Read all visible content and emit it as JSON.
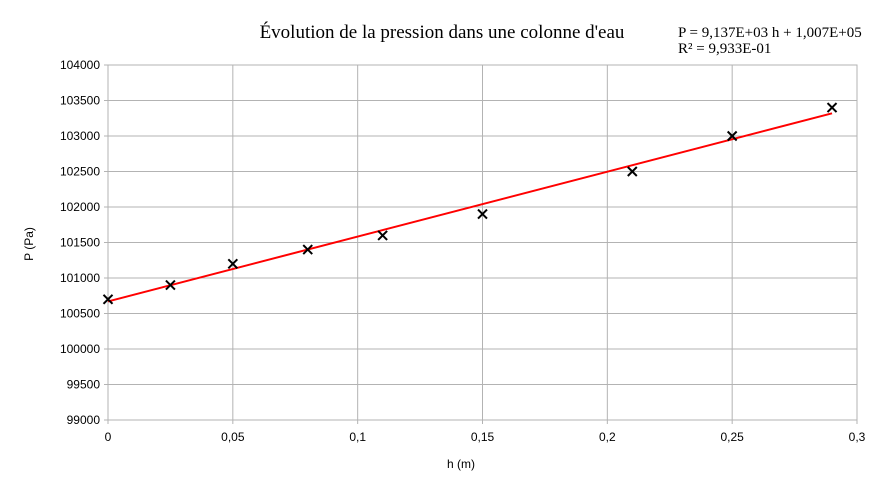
{
  "chart_data": {
    "type": "scatter",
    "title": "Évolution de la pression dans une colonne d'eau",
    "xlabel": "h (m)",
    "ylabel": "P (Pa)",
    "xlim": [
      0,
      0.3
    ],
    "ylim": [
      99000,
      104000
    ],
    "x_ticks": [
      "0",
      "0,05",
      "0,1",
      "0,15",
      "0,2",
      "0,25",
      "0,3"
    ],
    "x_tick_values": [
      0,
      0.05,
      0.1,
      0.15,
      0.2,
      0.25,
      0.3
    ],
    "y_ticks": [
      "99000",
      "99500",
      "100000",
      "100500",
      "101000",
      "101500",
      "102000",
      "102500",
      "103000",
      "103500",
      "104000"
    ],
    "y_tick_values": [
      99000,
      99500,
      100000,
      100500,
      101000,
      101500,
      102000,
      102500,
      103000,
      103500,
      104000
    ],
    "grid": true,
    "series": [
      {
        "type": "scatter",
        "marker": "x",
        "color": "#000000",
        "x": [
          0,
          0.025,
          0.05,
          0.08,
          0.11,
          0.15,
          0.21,
          0.25,
          0.29
        ],
        "y": [
          100700,
          100900,
          101200,
          101400,
          101600,
          101900,
          102500,
          103000,
          103400
        ]
      }
    ],
    "trendline": {
      "type": "linear",
      "color": "#ff0000",
      "slope": 9137,
      "intercept": 100670,
      "x_range": [
        0,
        0.29
      ],
      "equation": "P = 9,137E+03 h + 1,007E+05",
      "r_squared": "R² = 9,933E-01"
    }
  }
}
